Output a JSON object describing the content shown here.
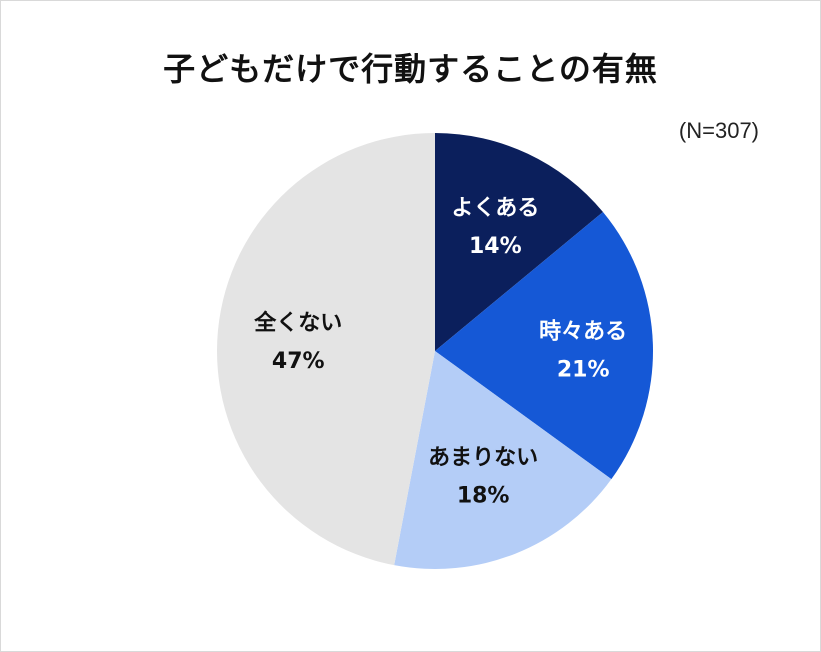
{
  "chart_data": {
    "type": "pie",
    "title": "子どもだけで行動することの有無",
    "subtitle": "(N=307)",
    "start": "12 o'clock, clockwise",
    "slices": [
      {
        "label": "よくある",
        "value": 14,
        "display": "14%",
        "color": "#0b1f5c",
        "text_color": "#ffffff"
      },
      {
        "label": "時々ある",
        "value": 21,
        "display": "21%",
        "color": "#1558d6",
        "text_color": "#ffffff"
      },
      {
        "label": "あまりない",
        "value": 18,
        "display": "18%",
        "color": "#b4cdf7",
        "text_color": "#111111"
      },
      {
        "label": "全くない",
        "value": 47,
        "display": "47%",
        "color": "#e4e4e4",
        "text_color": "#111111"
      }
    ]
  }
}
